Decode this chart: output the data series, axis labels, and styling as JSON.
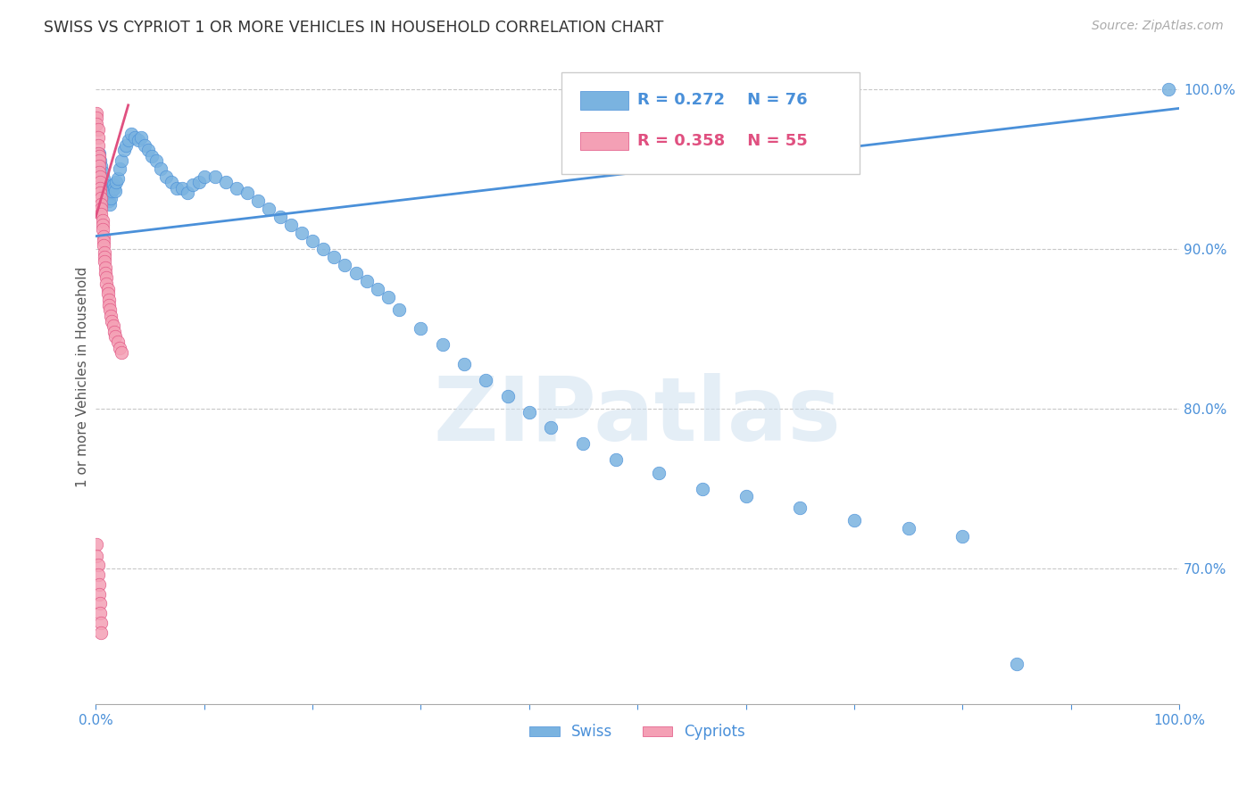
{
  "title": "SWISS VS CYPRIOT 1 OR MORE VEHICLES IN HOUSEHOLD CORRELATION CHART",
  "source": "Source: ZipAtlas.com",
  "ylabel": "1 or more Vehicles in Household",
  "watermark": "ZIPatlas",
  "xlim": [
    0.0,
    1.0
  ],
  "ylim": [
    0.615,
    1.025
  ],
  "yticks": [
    0.7,
    0.8,
    0.9,
    1.0
  ],
  "ytick_labels": [
    "70.0%",
    "80.0%",
    "90.0%",
    "100.0%"
  ],
  "xtick_positions": [
    0.0,
    0.1,
    0.2,
    0.3,
    0.4,
    0.5,
    0.6,
    0.7,
    0.8,
    0.9,
    1.0
  ],
  "xtick_labels": [
    "0.0%",
    "",
    "",
    "",
    "",
    "",
    "",
    "",
    "",
    "",
    "100.0%"
  ],
  "swiss_color": "#7ab3e0",
  "cypriot_color": "#f4a0b5",
  "swiss_line_color": "#4a90d9",
  "cypriot_line_color": "#e05080",
  "legend_swiss": "Swiss",
  "legend_cypriots": "Cypriots",
  "R_swiss": 0.272,
  "N_swiss": 76,
  "R_cypriot": 0.358,
  "N_cypriot": 55,
  "grid_color": "#c8c8c8",
  "tick_color": "#4a90d9",
  "swiss_x": [
    0.003,
    0.004,
    0.005,
    0.006,
    0.007,
    0.008,
    0.009,
    0.01,
    0.011,
    0.012,
    0.013,
    0.014,
    0.015,
    0.016,
    0.017,
    0.018,
    0.019,
    0.02,
    0.022,
    0.024,
    0.026,
    0.028,
    0.03,
    0.033,
    0.036,
    0.039,
    0.042,
    0.045,
    0.048,
    0.052,
    0.056,
    0.06,
    0.065,
    0.07,
    0.075,
    0.08,
    0.085,
    0.09,
    0.095,
    0.1,
    0.11,
    0.12,
    0.13,
    0.14,
    0.15,
    0.16,
    0.17,
    0.18,
    0.19,
    0.2,
    0.21,
    0.22,
    0.23,
    0.24,
    0.25,
    0.26,
    0.27,
    0.28,
    0.3,
    0.32,
    0.34,
    0.36,
    0.38,
    0.4,
    0.42,
    0.45,
    0.48,
    0.52,
    0.56,
    0.6,
    0.65,
    0.7,
    0.75,
    0.8,
    0.85,
    0.99
  ],
  "swiss_y": [
    0.96,
    0.955,
    0.952,
    0.948,
    0.944,
    0.94,
    0.936,
    0.932,
    0.935,
    0.93,
    0.928,
    0.932,
    0.936,
    0.94,
    0.938,
    0.936,
    0.942,
    0.944,
    0.95,
    0.955,
    0.962,
    0.965,
    0.968,
    0.972,
    0.97,
    0.968,
    0.97,
    0.965,
    0.962,
    0.958,
    0.955,
    0.95,
    0.945,
    0.942,
    0.938,
    0.938,
    0.935,
    0.94,
    0.942,
    0.945,
    0.945,
    0.942,
    0.938,
    0.935,
    0.93,
    0.925,
    0.92,
    0.915,
    0.91,
    0.905,
    0.9,
    0.895,
    0.89,
    0.885,
    0.88,
    0.875,
    0.87,
    0.862,
    0.85,
    0.84,
    0.828,
    0.818,
    0.808,
    0.798,
    0.788,
    0.778,
    0.768,
    0.76,
    0.75,
    0.745,
    0.738,
    0.73,
    0.725,
    0.72,
    0.64,
    1.0
  ],
  "cypriot_x": [
    0.001,
    0.001,
    0.001,
    0.002,
    0.002,
    0.002,
    0.002,
    0.003,
    0.003,
    0.003,
    0.003,
    0.004,
    0.004,
    0.004,
    0.004,
    0.005,
    0.005,
    0.005,
    0.005,
    0.006,
    0.006,
    0.006,
    0.007,
    0.007,
    0.007,
    0.008,
    0.008,
    0.008,
    0.009,
    0.009,
    0.01,
    0.01,
    0.011,
    0.011,
    0.012,
    0.012,
    0.013,
    0.014,
    0.015,
    0.016,
    0.017,
    0.018,
    0.02,
    0.022,
    0.024,
    0.001,
    0.001,
    0.002,
    0.002,
    0.003,
    0.003,
    0.004,
    0.004,
    0.005,
    0.005
  ],
  "cypriot_y": [
    0.985,
    0.982,
    0.978,
    0.975,
    0.97,
    0.965,
    0.96,
    0.958,
    0.955,
    0.952,
    0.948,
    0.945,
    0.942,
    0.938,
    0.935,
    0.932,
    0.928,
    0.925,
    0.922,
    0.918,
    0.915,
    0.912,
    0.908,
    0.905,
    0.902,
    0.898,
    0.895,
    0.892,
    0.888,
    0.885,
    0.882,
    0.878,
    0.875,
    0.872,
    0.868,
    0.865,
    0.862,
    0.858,
    0.855,
    0.852,
    0.848,
    0.845,
    0.842,
    0.838,
    0.835,
    0.715,
    0.708,
    0.702,
    0.696,
    0.69,
    0.684,
    0.678,
    0.672,
    0.666,
    0.66
  ],
  "blue_line_x0": 0.0,
  "blue_line_y0": 0.908,
  "blue_line_x1": 1.0,
  "blue_line_y1": 0.988,
  "pink_line_x0": 0.0,
  "pink_line_y0": 0.92,
  "pink_line_x1": 0.03,
  "pink_line_y1": 0.99
}
